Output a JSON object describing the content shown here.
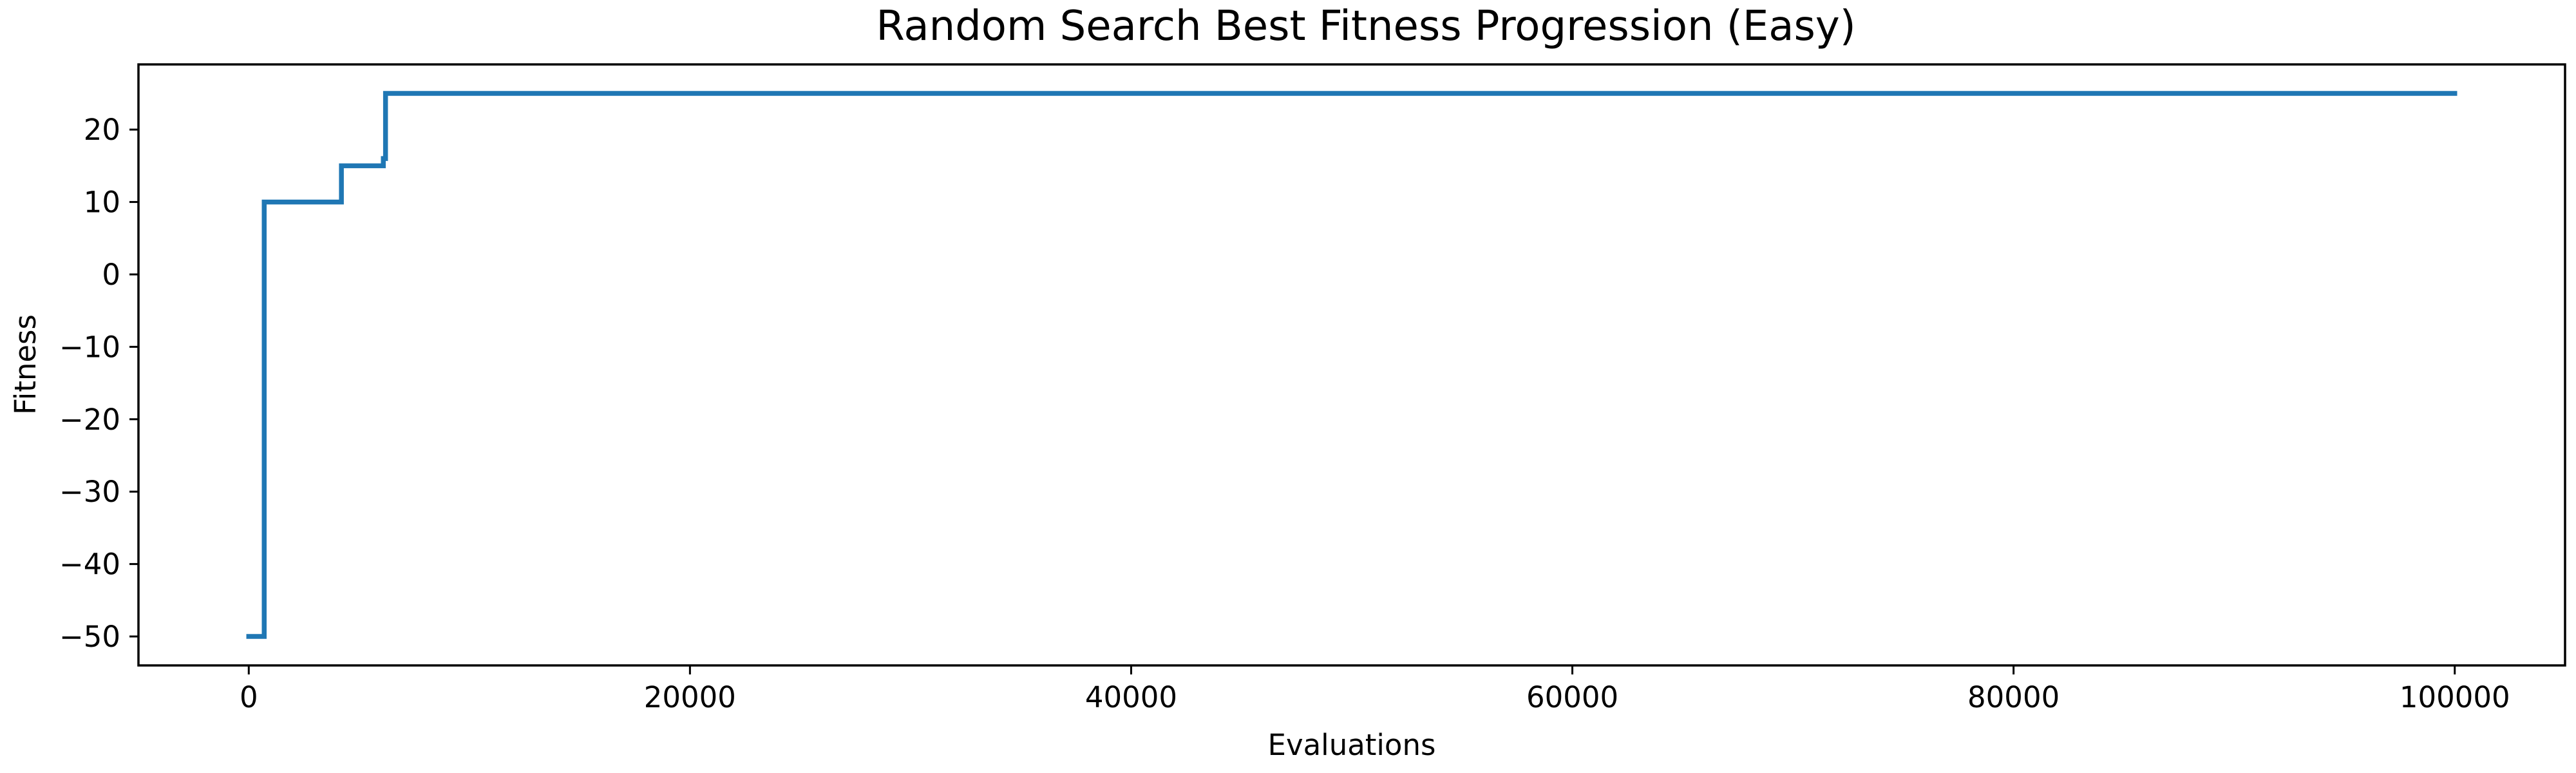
{
  "chart_data": {
    "type": "line",
    "title": "Random Search Best Fitness Progression (Easy)",
    "xlabel": "Evaluations",
    "ylabel": "Fitness",
    "xlim": [
      -5000,
      105000
    ],
    "ylim": [
      -54,
      29
    ],
    "grid": false,
    "x_ticks": [
      {
        "value": 0,
        "label": "0"
      },
      {
        "value": 20000,
        "label": "20000"
      },
      {
        "value": 40000,
        "label": "40000"
      },
      {
        "value": 60000,
        "label": "60000"
      },
      {
        "value": 80000,
        "label": "80000"
      },
      {
        "value": 100000,
        "label": "100000"
      }
    ],
    "y_ticks": [
      {
        "value": 20,
        "label": "20"
      },
      {
        "value": 10,
        "label": "10"
      },
      {
        "value": 0,
        "label": "0"
      },
      {
        "value": -10,
        "label": "−10"
      },
      {
        "value": -20,
        "label": "−20"
      },
      {
        "value": -30,
        "label": "−30"
      },
      {
        "value": -40,
        "label": "−40"
      },
      {
        "value": -50,
        "label": "−50"
      }
    ],
    "series": [
      {
        "color": "#1f77b4",
        "step": "post",
        "points": [
          {
            "x": 0,
            "y": -50
          },
          {
            "x": 700,
            "y": 10
          },
          {
            "x": 4200,
            "y": 15
          },
          {
            "x": 6100,
            "y": 16
          },
          {
            "x": 6200,
            "y": 25
          },
          {
            "x": 100000,
            "y": 25
          }
        ]
      }
    ]
  }
}
